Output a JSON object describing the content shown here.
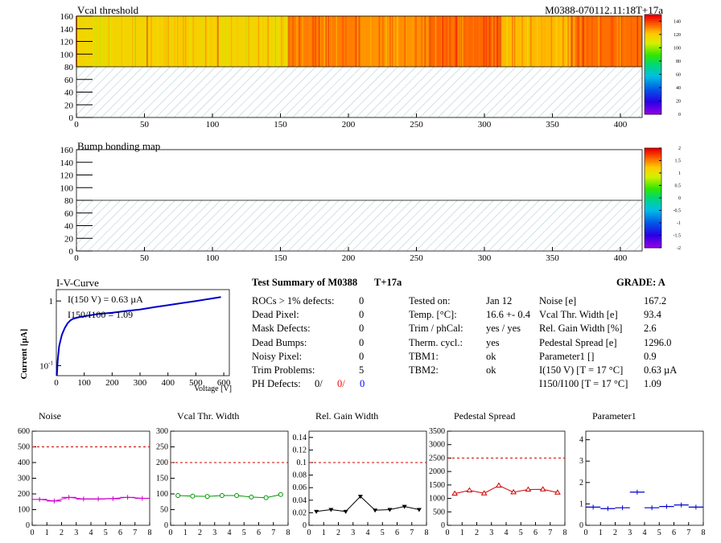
{
  "maps": [
    {
      "title": "Vcal threshold",
      "corner_label": "M0388-070112.11:18T+17a",
      "x_ticks": [
        "0",
        "50",
        "100",
        "150",
        "200",
        "250",
        "300",
        "350",
        "400"
      ],
      "y_ticks": [
        "0",
        "20",
        "40",
        "60",
        "80",
        "100",
        "120",
        "140",
        "160"
      ],
      "xlim": [
        0,
        416
      ],
      "ylim": [
        0,
        160
      ],
      "filled_y_range": [
        80,
        160
      ],
      "hatched_y_range": [
        0,
        80
      ],
      "roc_z": [
        118,
        121,
        120,
        108,
        118,
        122,
        133,
        125,
        130,
        138,
        136,
        132,
        125,
        128,
        135,
        128
      ],
      "z_ticks": [
        "0",
        "20",
        "40",
        "60",
        "80",
        "100",
        "120",
        "140"
      ],
      "zlim": [
        0,
        150
      ]
    },
    {
      "title": "Bump bonding map",
      "x_ticks": [
        "0",
        "50",
        "100",
        "150",
        "200",
        "250",
        "300",
        "350",
        "400"
      ],
      "y_ticks": [
        "0",
        "20",
        "40",
        "60",
        "80",
        "100",
        "120",
        "140",
        "160"
      ],
      "xlim": [
        0,
        416
      ],
      "ylim": [
        0,
        160
      ],
      "hatched_y_range": [
        0,
        80
      ],
      "z_ticks": [
        "-2",
        "-1.5",
        "-1",
        "-0.5",
        "0",
        "0.5",
        "1",
        "1.5",
        "2"
      ],
      "zlim": [
        -2,
        2
      ]
    }
  ],
  "iv": {
    "title": "I-V-Curve",
    "ylabel": "Current [µA]",
    "xlabel": "Voltage [V]",
    "annot1": "I(150 V) = 0.63 µA",
    "annot2": "I150/I100 = 1.09",
    "x_ticks": [
      "0",
      "100",
      "200",
      "300",
      "400",
      "500",
      "600"
    ],
    "y_ticks": [
      "1",
      "10-1"
    ],
    "xlim": [
      0,
      620
    ],
    "ylog_lim": [
      0.07,
      1.5
    ],
    "x": [
      2,
      5,
      10,
      20,
      30,
      40,
      50,
      60,
      80,
      100,
      120,
      150,
      200,
      250,
      300,
      350,
      400,
      450,
      500,
      550,
      590
    ],
    "y": [
      0.07,
      0.12,
      0.2,
      0.3,
      0.38,
      0.45,
      0.5,
      0.53,
      0.56,
      0.58,
      0.6,
      0.63,
      0.66,
      0.7,
      0.74,
      0.8,
      0.86,
      0.93,
      1.0,
      1.08,
      1.15
    ]
  },
  "summary": {
    "heading": "Test Summary of M0388",
    "tag": "T+17a",
    "grade": "GRADE:  A",
    "left": [
      {
        "label": "ROCs > 1% defects:",
        "value": "0"
      },
      {
        "label": "Dead Pixel:",
        "value": "0"
      },
      {
        "label": "Mask Defects:",
        "value": "0"
      },
      {
        "label": "Dead Bumps:",
        "value": "0"
      },
      {
        "label": "Noisy Pixel:",
        "value": "0"
      },
      {
        "label": "Trim Problems:",
        "value": "5"
      }
    ],
    "ph_label": "PH Defects:",
    "ph_values": [
      "0/",
      "0/",
      "0"
    ],
    "ph_colors": [
      "#000000",
      "#ff0000",
      "#0000ff"
    ],
    "middle": [
      {
        "label": "Tested on:",
        "value": "Jan 12"
      },
      {
        "label": "Temp. [°C]:",
        "value": "16.6 +- 0.4"
      },
      {
        "label": "Trim / phCal:",
        "value": "yes / yes"
      },
      {
        "label": "Therm. cycl.:",
        "value": "yes"
      },
      {
        "label": "TBM1:",
        "value": "ok"
      },
      {
        "label": "TBM2:",
        "value": "ok"
      }
    ],
    "right": [
      {
        "label": "Noise [e]",
        "value": "167.2"
      },
      {
        "label": "Vcal Thr. Width [e]",
        "value": "93.4"
      },
      {
        "label": "Rel. Gain Width [%]",
        "value": "2.6"
      },
      {
        "label": "Pedestal Spread [e]",
        "value": "1296.0"
      },
      {
        "label": "Parameter1 []",
        "value": "0.9"
      },
      {
        "label": "I(150 V)  [T = 17 °C]",
        "value": "0.63 µA"
      },
      {
        "label": "I150/I100  [T = 17 °C]",
        "value": "1.09"
      }
    ]
  },
  "chart_data": [
    {
      "type": "line",
      "title": "Noise",
      "x": [
        0.5,
        1.5,
        2.5,
        3.5,
        4.5,
        5.5,
        6.5,
        7.5
      ],
      "values": [
        165,
        155,
        178,
        168,
        168,
        170,
        178,
        172
      ],
      "ylim": [
        0,
        600
      ],
      "xlim": [
        0,
        8
      ],
      "threshold": 500,
      "y_ticks": [
        "0",
        "100",
        "200",
        "300",
        "400",
        "500",
        "600"
      ],
      "x_ticks": [
        "0",
        "1",
        "2",
        "3",
        "4",
        "5",
        "6",
        "7",
        "8"
      ],
      "color": "#cc00cc",
      "marker": "hbar"
    },
    {
      "type": "line",
      "title": "Vcal Thr. Width",
      "x": [
        0.5,
        1.5,
        2.5,
        3.5,
        4.5,
        5.5,
        6.5,
        7.5
      ],
      "values": [
        95,
        93,
        92,
        95,
        95,
        90,
        88,
        98
      ],
      "ylim": [
        0,
        300
      ],
      "xlim": [
        0,
        8
      ],
      "threshold": 200,
      "y_ticks": [
        "0",
        "50",
        "100",
        "150",
        "200",
        "250",
        "300"
      ],
      "x_ticks": [
        "0",
        "1",
        "2",
        "3",
        "4",
        "5",
        "6",
        "7",
        "8"
      ],
      "color": "#009900",
      "marker": "circle"
    },
    {
      "type": "line",
      "title": "Rel. Gain Width",
      "x": [
        0.5,
        1.5,
        2.5,
        3.5,
        4.5,
        5.5,
        6.5,
        7.5
      ],
      "values": [
        0.022,
        0.025,
        0.022,
        0.046,
        0.024,
        0.025,
        0.03,
        0.025
      ],
      "ylim": [
        0,
        0.15
      ],
      "xlim": [
        0,
        8
      ],
      "threshold": 0.1,
      "y_ticks": [
        "0",
        "0.02",
        "0.04",
        "0.06",
        "0.08",
        "0.1",
        "0.12",
        "0.14"
      ],
      "x_ticks": [
        "0",
        "1",
        "2",
        "3",
        "4",
        "5",
        "6",
        "7",
        "8"
      ],
      "color": "#000000",
      "marker": "triangle-down"
    },
    {
      "type": "line",
      "title": "Pedestal Spread",
      "x": [
        0.5,
        1.5,
        2.5,
        3.5,
        4.5,
        5.5,
        6.5,
        7.5
      ],
      "values": [
        1180,
        1300,
        1190,
        1480,
        1230,
        1330,
        1340,
        1220
      ],
      "ylim": [
        0,
        3500
      ],
      "xlim": [
        0,
        8
      ],
      "threshold": 2500,
      "y_ticks": [
        "0",
        "500",
        "1000",
        "1500",
        "2000",
        "2500",
        "3000",
        "3500"
      ],
      "x_ticks": [
        "0",
        "1",
        "2",
        "3",
        "4",
        "5",
        "6",
        "7",
        "8"
      ],
      "color": "#cc0000",
      "marker": "triangle-up"
    },
    {
      "type": "scatter",
      "title": "Parameter1",
      "x": [
        0.5,
        1.5,
        2.5,
        3.5,
        4.5,
        5.5,
        6.5,
        7.5
      ],
      "values": [
        0.85,
        0.78,
        0.82,
        1.55,
        0.82,
        0.88,
        0.95,
        0.85
      ],
      "ylim": [
        0,
        4.4
      ],
      "xlim": [
        0,
        8
      ],
      "y_ticks": [
        "0",
        "1",
        "2",
        "3",
        "4"
      ],
      "x_ticks": [
        "0",
        "1",
        "2",
        "3",
        "4",
        "5",
        "6",
        "7",
        "8"
      ],
      "color": "#0000cc",
      "marker": "hbar"
    }
  ]
}
